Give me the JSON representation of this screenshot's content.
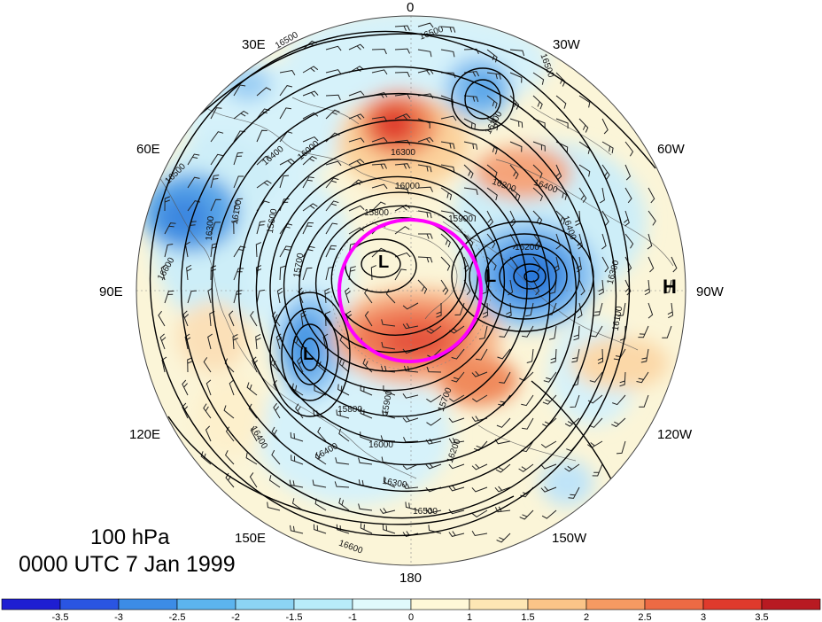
{
  "title": {
    "level": "100 hPa",
    "time": "0000 UTC 7 Jan 1999"
  },
  "longitude_labels": [
    {
      "id": "lon-0",
      "text": "0"
    },
    {
      "id": "lon-30w",
      "text": "30W"
    },
    {
      "id": "lon-60w",
      "text": "60W"
    },
    {
      "id": "lon-90w",
      "text": "90W"
    },
    {
      "id": "lon-120w",
      "text": "120W"
    },
    {
      "id": "lon-150w",
      "text": "150W"
    },
    {
      "id": "lon-180",
      "text": "180"
    },
    {
      "id": "lon-150e",
      "text": "150E"
    },
    {
      "id": "lon-120e",
      "text": "120E"
    },
    {
      "id": "lon-90e",
      "text": "90E"
    },
    {
      "id": "lon-60e",
      "text": "60E"
    },
    {
      "id": "lon-30e",
      "text": "30E"
    }
  ],
  "pressure_systems": [
    {
      "id": "low-polar",
      "text": "L"
    },
    {
      "id": "low-canada",
      "text": "L"
    },
    {
      "id": "low-siberia",
      "text": "L"
    },
    {
      "id": "high-atlantic",
      "text": "H"
    }
  ],
  "contour_labels": [
    "16500",
    "16500",
    "16500",
    "16300",
    "16400",
    "16400",
    "16600",
    "16300",
    "16200",
    "16000",
    "15900",
    "15800",
    "15700",
    "15600",
    "16100",
    "16000",
    "16300",
    "16400",
    "16500",
    "16600",
    "16200",
    "16100",
    "15800",
    "16300",
    "16300",
    "16400",
    "16500",
    "16200",
    "16400",
    "16000",
    "15900",
    "15700"
  ],
  "colorbar": {
    "colors": [
      "#1e1ed2",
      "#2a55e2",
      "#3c8ce6",
      "#5cb4ee",
      "#8cd4f4",
      "#b8ecfa",
      "#e0fafc",
      "#fff8d8",
      "#fde6b4",
      "#fbc488",
      "#f59a62",
      "#ed6a44",
      "#df3a2c",
      "#b81a22"
    ],
    "ticks": [
      "-3.5",
      "-3",
      "-2.5",
      "-2",
      "-1.5",
      "-1",
      "0",
      "1",
      "1.5",
      "2",
      "2.5",
      "3",
      "3.5"
    ]
  },
  "highlight": {
    "color": "#ff00ff",
    "shape": "circle"
  }
}
